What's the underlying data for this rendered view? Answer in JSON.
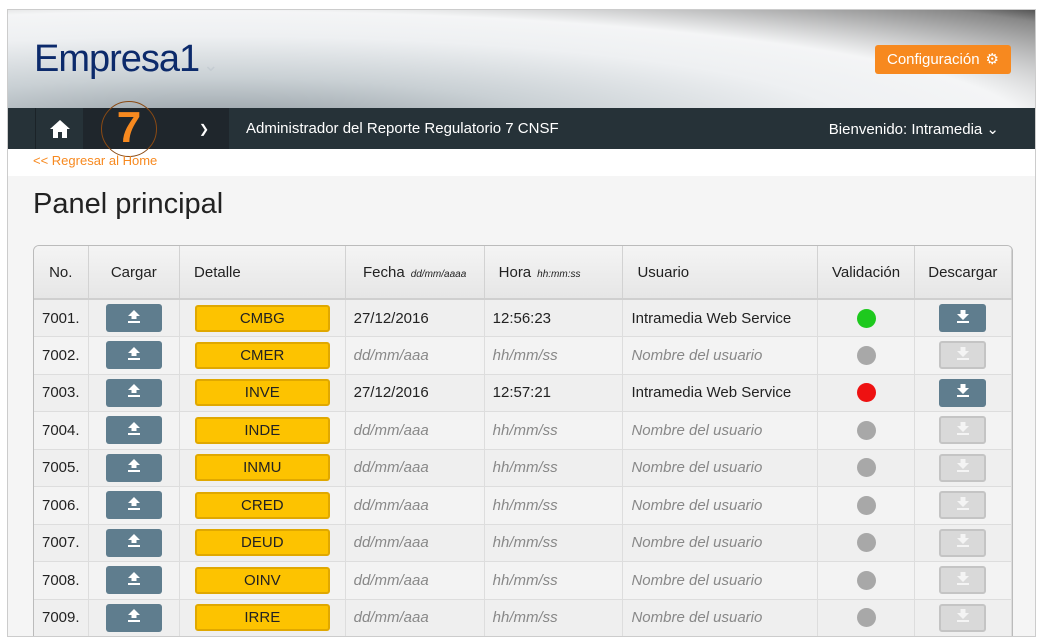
{
  "header": {
    "logo": "Empresa1",
    "config_label": "Configuración"
  },
  "nav": {
    "report_number": "7",
    "title": "Administrador del Reporte Regulatorio 7 CNSF",
    "welcome_label": "Bienvenido:",
    "user": "Intramedia"
  },
  "back_link": "<< Regresar al Home",
  "page_title": "Panel principal",
  "table": {
    "headers": {
      "no": "No.",
      "cargar": "Cargar",
      "detalle": "Detalle",
      "fecha": "Fecha",
      "fecha_fmt": "dd/mm/aaaa",
      "hora": "Hora",
      "hora_fmt": "hh:mm:ss",
      "usuario": "Usuario",
      "validacion": "Validación",
      "descargar": "Descargar"
    },
    "rows": [
      {
        "no": "7001.",
        "detalle": "CMBG",
        "fecha": "27/12/2016",
        "hora": "12:56:23",
        "usuario": "Intramedia Web Service",
        "status": "green",
        "download": true
      },
      {
        "no": "7002.",
        "detalle": "CMER",
        "fecha": "dd/mm/aaa",
        "hora": "hh/mm/ss",
        "usuario": "Nombre del usuario",
        "status": "gray",
        "download": false
      },
      {
        "no": "7003.",
        "detalle": "INVE",
        "fecha": "27/12/2016",
        "hora": "12:57:21",
        "usuario": "Intramedia Web Service",
        "status": "red",
        "download": true
      },
      {
        "no": "7004.",
        "detalle": "INDE",
        "fecha": "dd/mm/aaa",
        "hora": "hh/mm/ss",
        "usuario": "Nombre del usuario",
        "status": "gray",
        "download": false
      },
      {
        "no": "7005.",
        "detalle": "INMU",
        "fecha": "dd/mm/aaa",
        "hora": "hh/mm/ss",
        "usuario": "Nombre del usuario",
        "status": "gray",
        "download": false
      },
      {
        "no": "7006.",
        "detalle": "CRED",
        "fecha": "dd/mm/aaa",
        "hora": "hh/mm/ss",
        "usuario": "Nombre del usuario",
        "status": "gray",
        "download": false
      },
      {
        "no": "7007.",
        "detalle": "DEUD",
        "fecha": "dd/mm/aaa",
        "hora": "hh/mm/ss",
        "usuario": "Nombre del usuario",
        "status": "gray",
        "download": false
      },
      {
        "no": "7008.",
        "detalle": "OINV",
        "fecha": "dd/mm/aaa",
        "hora": "hh/mm/ss",
        "usuario": "Nombre del usuario",
        "status": "gray",
        "download": false
      },
      {
        "no": "7009.",
        "detalle": "IRRE",
        "fecha": "dd/mm/aaa",
        "hora": "hh/mm/ss",
        "usuario": "Nombre del usuario",
        "status": "gray",
        "download": false
      }
    ]
  },
  "colors": {
    "accent": "#f7891f",
    "nav": "#263238",
    "green": "#1ec91e",
    "red": "#ee1111",
    "gray": "#a8a8a8",
    "detail": "#fdc300",
    "button": "#5f7d8e"
  }
}
